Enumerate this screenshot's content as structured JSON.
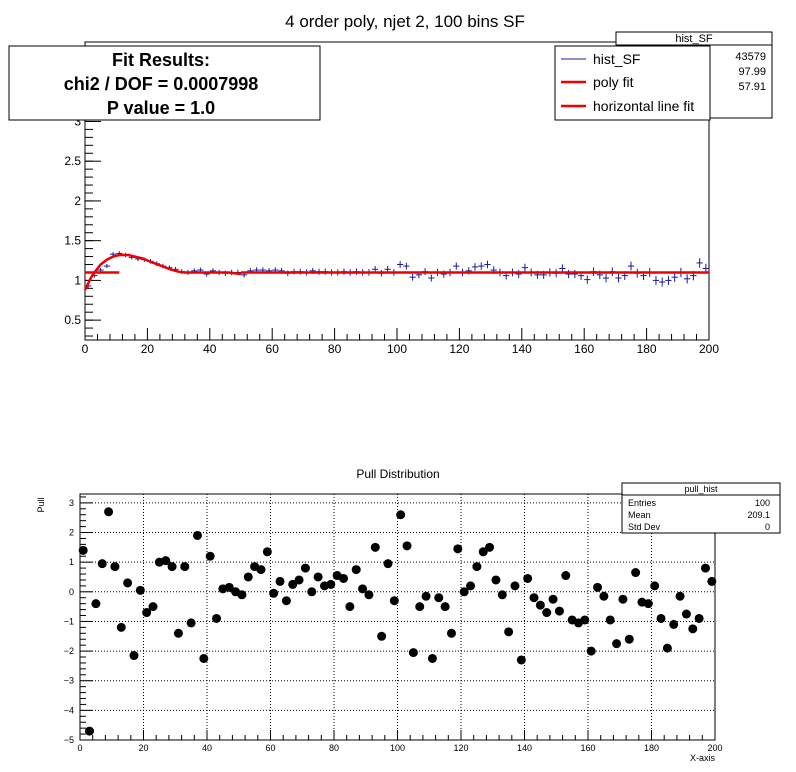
{
  "chart_data": [
    {
      "type": "scatter",
      "title": "4 order poly, njet 2, 100 bins SF",
      "xlim": [
        0,
        200
      ],
      "ylim": [
        0.25,
        4.0
      ],
      "xticks": [
        0,
        20,
        40,
        60,
        80,
        100,
        120,
        140,
        160,
        180,
        200
      ],
      "yticks": [
        0.5,
        1,
        1.5,
        2,
        2.5,
        3
      ],
      "grid": false,
      "fit_box": {
        "line1": "Fit Results:",
        "line2": "chi2 / DOF = 0.0007998",
        "line3": "P value = 1.0"
      },
      "stats": {
        "name": "hist_SF",
        "values": [
          "43579",
          "97.99",
          "57.91"
        ]
      },
      "legend": [
        "hist_SF",
        "poly fit",
        "horizontal line fit"
      ],
      "colors": {
        "hist": "#1a1a9e",
        "fit": "#ee0000"
      },
      "series": [
        {
          "name": "hist_SF",
          "x": [
            1,
            3,
            5,
            7,
            9,
            11,
            13,
            15,
            17,
            19,
            21,
            23,
            25,
            27,
            29,
            31,
            33,
            35,
            37,
            39,
            41,
            43,
            45,
            47,
            49,
            51,
            53,
            55,
            57,
            59,
            61,
            63,
            65,
            67,
            69,
            71,
            73,
            75,
            77,
            79,
            81,
            83,
            85,
            87,
            89,
            91,
            93,
            95,
            97,
            99,
            101,
            103,
            105,
            107,
            109,
            111,
            113,
            115,
            117,
            119,
            121,
            123,
            125,
            127,
            129,
            131,
            133,
            135,
            137,
            139,
            141,
            143,
            145,
            147,
            149,
            151,
            153,
            155,
            157,
            159,
            161,
            163,
            165,
            167,
            169,
            171,
            173,
            175,
            177,
            179,
            181,
            183,
            185,
            187,
            189,
            191,
            193,
            195,
            197,
            199
          ],
          "y": [
            0.93,
            1.06,
            1.13,
            1.18,
            1.33,
            1.34,
            1.32,
            1.29,
            1.27,
            1.26,
            1.24,
            1.21,
            1.18,
            1.16,
            1.14,
            1.11,
            1.1,
            1.12,
            1.13,
            1.08,
            1.12,
            1.1,
            1.09,
            1.1,
            1.1,
            1.07,
            1.12,
            1.13,
            1.13,
            1.12,
            1.13,
            1.12,
            1.09,
            1.11,
            1.11,
            1.1,
            1.12,
            1.11,
            1.11,
            1.1,
            1.1,
            1.11,
            1.1,
            1.11,
            1.1,
            1.1,
            1.14,
            1.09,
            1.14,
            1.1,
            1.2,
            1.18,
            1.04,
            1.07,
            1.11,
            1.03,
            1.1,
            1.08,
            1.1,
            1.18,
            1.1,
            1.12,
            1.17,
            1.18,
            1.2,
            1.13,
            1.1,
            1.06,
            1.1,
            1.08,
            1.16,
            1.1,
            1.07,
            1.07,
            1.1,
            1.09,
            1.15,
            1.08,
            1.08,
            1.06,
            1.01,
            1.11,
            1.07,
            1.03,
            1.11,
            1.03,
            1.06,
            1.18,
            1.09,
            1.06,
            1.1,
            1.0,
            0.98,
            1.0,
            1.04,
            1.1,
            1.02,
            1.06,
            1.22,
            1.15
          ]
        },
        {
          "name": "poly fit",
          "x": [
            0,
            1,
            2,
            3,
            4,
            5,
            6,
            7,
            8,
            9,
            10,
            11,
            12,
            13,
            14,
            15,
            16,
            17,
            18,
            19,
            20,
            22,
            24,
            26,
            28,
            30,
            32,
            34,
            36,
            38,
            40,
            42,
            44,
            46,
            48,
            50
          ],
          "y": [
            0.88,
            0.96,
            1.04,
            1.1,
            1.15,
            1.2,
            1.23,
            1.26,
            1.28,
            1.3,
            1.31,
            1.32,
            1.32,
            1.32,
            1.32,
            1.31,
            1.3,
            1.29,
            1.28,
            1.27,
            1.25,
            1.22,
            1.19,
            1.16,
            1.13,
            1.11,
            1.1,
            1.1,
            1.1,
            1.1,
            1.1,
            1.1,
            1.1,
            1.1,
            1.09,
            1.08
          ]
        },
        {
          "name": "horizontal line fit",
          "segments": [
            {
              "x": [
                0,
                11
              ],
              "y": [
                1.1,
                1.1
              ]
            },
            {
              "x": [
                50,
                200
              ],
              "y": [
                1.1,
                1.1
              ]
            }
          ]
        }
      ]
    },
    {
      "type": "scatter",
      "title": "Pull Distribution",
      "xlabel": "X-axis",
      "ylabel": "Pull",
      "xlim": [
        0,
        200
      ],
      "ylim": [
        -5,
        3.3
      ],
      "xticks": [
        0,
        20,
        40,
        60,
        80,
        100,
        120,
        140,
        160,
        180,
        200
      ],
      "yticks": [
        -5,
        -4,
        -3,
        -2,
        -1,
        0,
        1,
        2,
        3
      ],
      "grid": true,
      "stats": {
        "name": "pull_hist",
        "labels": [
          "Entries",
          "Mean",
          "Std Dev"
        ],
        "values": [
          "100",
          "209.1",
          "0"
        ]
      },
      "series": [
        {
          "name": "pull",
          "x": [
            1,
            3,
            5,
            7,
            9,
            11,
            13,
            15,
            17,
            19,
            21,
            23,
            25,
            27,
            29,
            31,
            33,
            35,
            37,
            39,
            41,
            43,
            45,
            47,
            49,
            51,
            53,
            55,
            57,
            59,
            61,
            63,
            65,
            67,
            69,
            71,
            73,
            75,
            77,
            79,
            81,
            83,
            85,
            87,
            89,
            91,
            93,
            95,
            97,
            99,
            101,
            103,
            105,
            107,
            109,
            111,
            113,
            115,
            117,
            119,
            121,
            123,
            125,
            127,
            129,
            131,
            133,
            135,
            137,
            139,
            141,
            143,
            145,
            147,
            149,
            151,
            153,
            155,
            157,
            159,
            161,
            163,
            165,
            167,
            169,
            171,
            173,
            175,
            177,
            179,
            181,
            183,
            185,
            187,
            189,
            191,
            193,
            195,
            197,
            199
          ],
          "y": [
            1.4,
            -4.7,
            -0.4,
            0.95,
            2.7,
            0.85,
            -1.2,
            0.3,
            -2.15,
            0.05,
            -0.7,
            -0.5,
            1.0,
            1.05,
            0.85,
            -1.4,
            0.85,
            -1.05,
            1.9,
            -2.25,
            1.2,
            -0.9,
            0.1,
            0.15,
            0.0,
            -0.1,
            0.5,
            0.85,
            0.75,
            1.35,
            -0.05,
            0.35,
            -0.3,
            0.25,
            0.4,
            0.8,
            0.0,
            0.5,
            0.2,
            0.25,
            0.55,
            0.45,
            -0.5,
            0.75,
            0.1,
            -0.1,
            1.5,
            -1.5,
            0.95,
            -0.3,
            2.6,
            1.55,
            -2.05,
            -0.5,
            -0.15,
            -2.25,
            -0.2,
            -0.5,
            -1.4,
            1.45,
            0.0,
            0.2,
            0.85,
            1.35,
            1.5,
            0.4,
            -0.1,
            -1.35,
            0.2,
            -2.3,
            0.45,
            -0.2,
            -0.45,
            -0.7,
            -0.25,
            -0.65,
            0.55,
            -0.95,
            -1.05,
            -0.95,
            -2.0,
            0.15,
            -0.15,
            -0.95,
            -1.75,
            -0.25,
            -1.6,
            0.65,
            -0.35,
            -0.4,
            0.2,
            -0.9,
            -1.9,
            -1.1,
            -0.15,
            -0.75,
            -1.25,
            -0.9,
            0.8,
            0.35
          ]
        }
      ]
    }
  ]
}
